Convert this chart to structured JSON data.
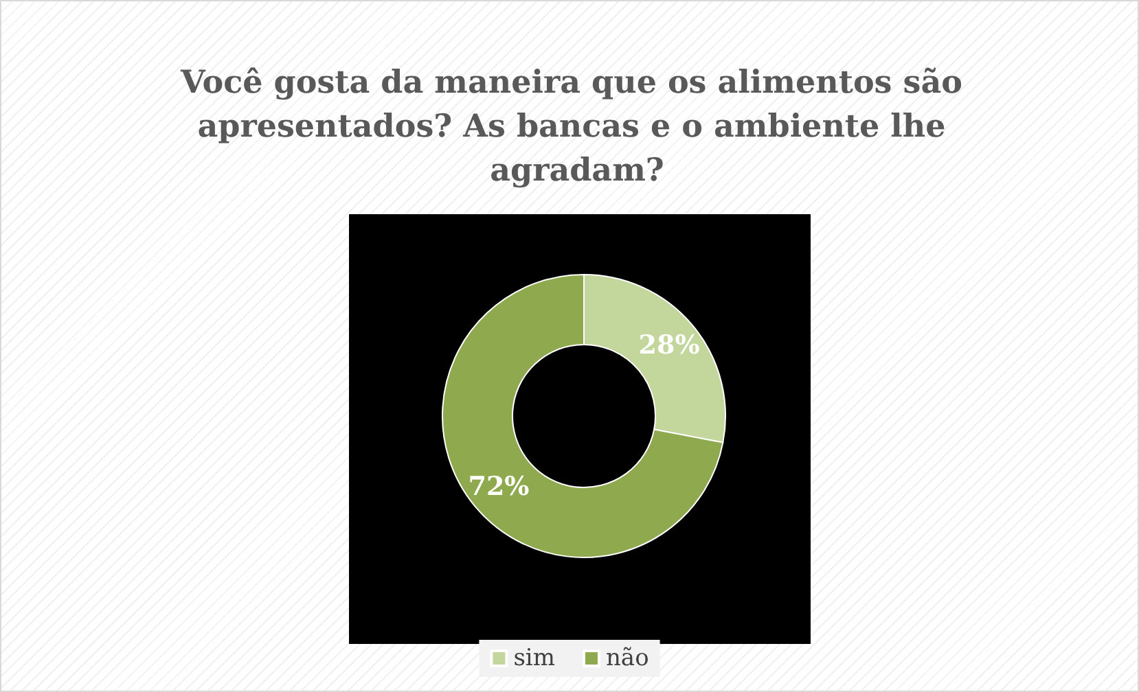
{
  "chart_data": {
    "type": "donut",
    "title": "Você gosta da maneira que os alimentos são apresentados? As bancas e o ambiente lhe agradam?",
    "categories": [
      "sim",
      "não"
    ],
    "values": [
      28,
      72
    ],
    "colors": [
      "#c3d69b",
      "#8faa4e"
    ],
    "value_labels": [
      "28%",
      "72%"
    ],
    "legend": "bottom"
  }
}
